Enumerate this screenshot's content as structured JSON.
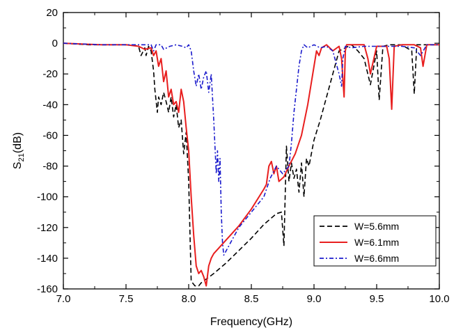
{
  "chart_data": {
    "type": "line",
    "title": "",
    "xlabel": "Frequency(GHz)",
    "ylabel_main": "S",
    "ylabel_sub": "21",
    "ylabel_unit": "(dB)",
    "xlim": [
      7.0,
      10.0
    ],
    "ylim": [
      -160,
      20
    ],
    "x_ticks": [
      7.0,
      7.5,
      8.0,
      8.5,
      9.0,
      9.5,
      10.0
    ],
    "x_tick_labels": [
      "7.0",
      "7.5",
      "8.0",
      "8.5",
      "9.0",
      "9.5",
      "10.0"
    ],
    "y_ticks": [
      20,
      0,
      -20,
      -40,
      -60,
      -80,
      -100,
      -120,
      -140,
      -160
    ],
    "y_tick_labels": [
      "20",
      "0",
      "-20",
      "-40",
      "-60",
      "-80",
      "-100",
      "-120",
      "-140",
      "-160"
    ],
    "grid": false,
    "legend_position": "bottom-right",
    "series": [
      {
        "name": "W=5.6mm",
        "color": "#000000",
        "dash": "7,4",
        "x": [
          7.0,
          7.2,
          7.4,
          7.55,
          7.6,
          7.62,
          7.65,
          7.66,
          7.68,
          7.7,
          7.72,
          7.73,
          7.75,
          7.76,
          7.78,
          7.8,
          7.82,
          7.84,
          7.86,
          7.88,
          7.9,
          7.92,
          7.94,
          7.96,
          7.98,
          8.0,
          8.02,
          8.05,
          8.08,
          8.1,
          8.2,
          8.3,
          8.4,
          8.5,
          8.6,
          8.7,
          8.74,
          8.76,
          8.78,
          8.8,
          8.82,
          8.84,
          8.86,
          8.88,
          8.9,
          8.92,
          8.94,
          8.96,
          9.0,
          9.05,
          9.1,
          9.15,
          9.2,
          9.25,
          9.3,
          9.35,
          9.4,
          9.45,
          9.5,
          9.52,
          9.55,
          9.6,
          9.7,
          9.78,
          9.8,
          9.82,
          9.9,
          10.0
        ],
        "y": [
          0,
          -1,
          -1,
          -1,
          -2,
          -8,
          -3,
          -8,
          -2,
          -5,
          -18,
          -30,
          -45,
          -35,
          -40,
          -32,
          -38,
          -45,
          -35,
          -48,
          -40,
          -55,
          -50,
          -72,
          -58,
          -90,
          -155,
          -158,
          -158,
          -156,
          -150,
          -143,
          -135,
          -127,
          -118,
          -111,
          -110,
          -132,
          -67,
          -90,
          -78,
          -88,
          -82,
          -97,
          -78,
          -100,
          -75,
          -80,
          -63,
          -50,
          -35,
          -20,
          -5,
          -3,
          -1,
          -5,
          -10,
          -27,
          -5,
          -37,
          -2,
          -1,
          -1,
          -5,
          -33,
          -1,
          -1,
          -1
        ]
      },
      {
        "name": "W=6.1mm",
        "color": "#e81e1e",
        "dash": "",
        "x": [
          7.0,
          7.3,
          7.5,
          7.6,
          7.65,
          7.7,
          7.72,
          7.74,
          7.76,
          7.78,
          7.8,
          7.82,
          7.84,
          7.86,
          7.88,
          7.9,
          7.92,
          7.94,
          7.96,
          7.98,
          8.0,
          8.02,
          8.04,
          8.06,
          8.08,
          8.1,
          8.12,
          8.14,
          8.16,
          8.18,
          8.2,
          8.3,
          8.4,
          8.5,
          8.6,
          8.62,
          8.64,
          8.66,
          8.68,
          8.7,
          8.72,
          8.76,
          8.8,
          8.85,
          8.9,
          8.95,
          9.0,
          9.02,
          9.04,
          9.06,
          9.1,
          9.15,
          9.2,
          9.22,
          9.24,
          9.25,
          9.26,
          9.3,
          9.4,
          9.43,
          9.45,
          9.5,
          9.58,
          9.6,
          9.62,
          9.64,
          9.7,
          9.8,
          9.85,
          9.87,
          9.9,
          10.0
        ],
        "y": [
          0,
          -1,
          -1,
          -2,
          -4,
          -3,
          -8,
          -5,
          -15,
          -10,
          -25,
          -18,
          -35,
          -30,
          -40,
          -38,
          -45,
          -30,
          -38,
          -55,
          -70,
          -100,
          -125,
          -145,
          -150,
          -148,
          -152,
          -158,
          -145,
          -140,
          -137,
          -128,
          -119,
          -108,
          -95,
          -92,
          -80,
          -77,
          -85,
          -80,
          -90,
          -87,
          -80,
          -72,
          -60,
          -40,
          -15,
          -5,
          -8,
          -3,
          -1,
          -5,
          -2,
          -10,
          -35,
          -5,
          -1,
          -1,
          -1,
          -10,
          -20,
          -2,
          -2,
          -10,
          -43,
          -2,
          -1,
          -1,
          -3,
          -15,
          -1,
          -1
        ]
      },
      {
        "name": "W=6.6mm",
        "color": "#1a1acc",
        "dash": "6,3,2,3",
        "x": [
          7.0,
          7.3,
          7.5,
          7.6,
          7.7,
          7.72,
          7.74,
          7.78,
          7.8,
          7.85,
          7.9,
          7.95,
          7.98,
          8.0,
          8.02,
          8.04,
          8.06,
          8.08,
          8.1,
          8.12,
          8.14,
          8.16,
          8.18,
          8.2,
          8.22,
          8.23,
          8.24,
          8.25,
          8.26,
          8.27,
          8.28,
          8.3,
          8.4,
          8.5,
          8.6,
          8.65,
          8.7,
          8.75,
          8.8,
          8.82,
          8.84,
          8.86,
          8.88,
          8.9,
          8.92,
          8.95,
          9.0,
          9.05,
          9.1,
          9.15,
          9.2,
          9.22,
          9.23,
          9.25,
          9.3,
          9.4,
          9.5,
          9.6,
          9.7,
          9.8,
          9.85,
          9.9,
          10.0
        ],
        "y": [
          0,
          -1,
          -1,
          -1,
          -1,
          -5,
          -1,
          -1,
          -4,
          -2,
          -1,
          -2,
          -3,
          -1,
          -5,
          -18,
          -28,
          -20,
          -30,
          -22,
          -18,
          -32,
          -20,
          -50,
          -85,
          -70,
          -90,
          -75,
          -110,
          -130,
          -138,
          -135,
          -120,
          -110,
          -100,
          -88,
          -80,
          -85,
          -80,
          -65,
          -45,
          -30,
          -15,
          -5,
          -1,
          -3,
          -1,
          -3,
          -2,
          -5,
          -20,
          -28,
          -10,
          -2,
          -3,
          -2,
          -2,
          -2,
          -2,
          -3,
          -8,
          -1,
          -1
        ]
      }
    ]
  }
}
